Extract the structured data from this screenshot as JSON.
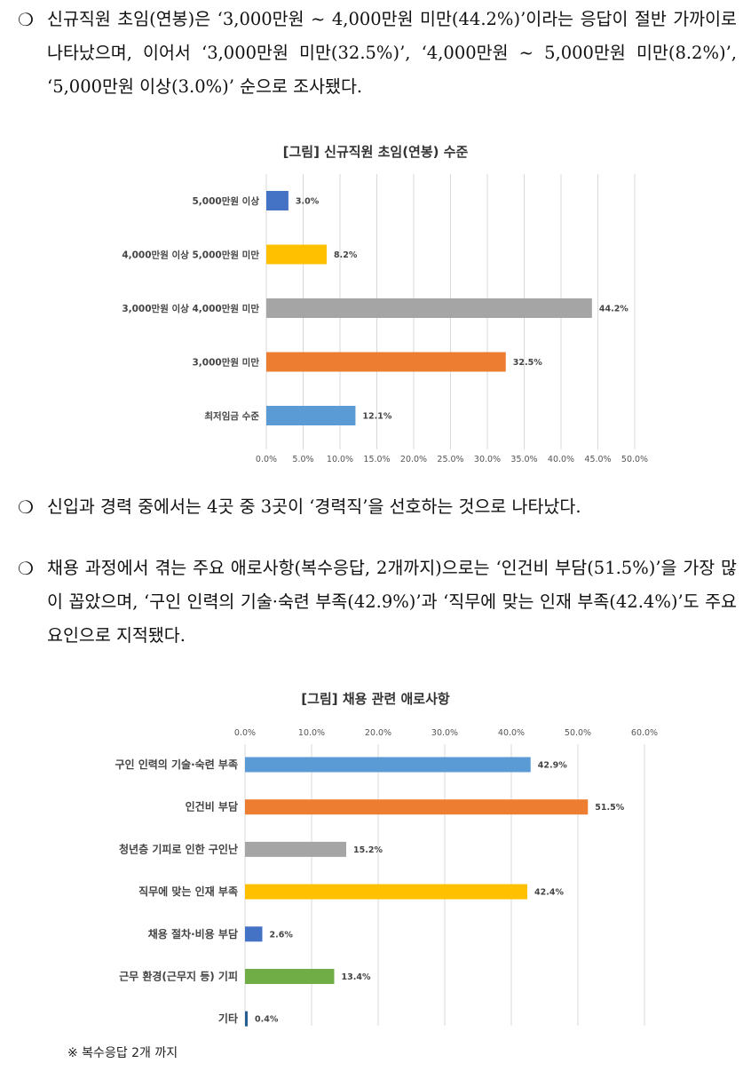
{
  "paragraphs": [
    {
      "bullet": "❍",
      "text": "신규직원 초임(연봉)은 ‘3,000만원 ~ 4,000만원 미만(44.2%)’이라는 응답이 절반 가까이로 나타났으며, 이어서 ‘3,000만원 미만(32.5%)’, ‘4,000만원 ~ 5,000만원 미만(8.2%)’, ‘5,000만원 이상(3.0%)’ 순으로 조사됐다."
    },
    {
      "bullet": "❍",
      "text": "신입과 경력 중에서는 4곳 중 3곳이 ‘경력직’을 선호하는 것으로 나타났다."
    },
    {
      "bullet": "❍",
      "text": "채용 과정에서 겪는 주요 애로사항(복수응답, 2개까지)으로는 ‘인건비 부담(51.5%)’을 가장 많이 꼽았으며, ‘구인 인력의 기술·숙련 부족(42.9%)’과 ‘직무에 맞는 인재 부족(42.4%)’도 주요 요인으로 지적됐다."
    }
  ],
  "footnote": "※ 복수응답 2개 까지",
  "chart_data": [
    {
      "type": "bar",
      "orientation": "horizontal",
      "title": "[그림] 신규직원 초임(연봉) 수준",
      "categories": [
        "5,000만원 이상",
        "4,000만원 이상 5,000만원 미만",
        "3,000만원 이상 4,000만원 미만",
        "3,000만원 미만",
        "최저임금 수준"
      ],
      "values": [
        3.0,
        8.2,
        44.2,
        32.5,
        12.1
      ],
      "value_labels": [
        "3.0%",
        "8.2%",
        "44.2%",
        "32.5%",
        "12.1%"
      ],
      "colors": [
        "#4472c4",
        "#ffc000",
        "#a5a5a5",
        "#ed7d31",
        "#5b9bd5"
      ],
      "xlim": [
        0,
        50
      ],
      "ticks": [
        "0.0%",
        "5.0%",
        "10.0%",
        "15.0%",
        "20.0%",
        "25.0%",
        "30.0%",
        "35.0%",
        "40.0%",
        "45.0%",
        "50.0%"
      ],
      "axis_position": "bottom",
      "grid": true
    },
    {
      "type": "bar",
      "orientation": "horizontal",
      "title": "[그림] 채용 관련 애로사항",
      "categories": [
        "구인 인력의 기술·숙련 부족",
        "인건비 부담",
        "청년층 기피로 인한 구인난",
        "직무에 맞는 인재 부족",
        "채용 절차·비용 부담",
        "근무 환경(근무지 등) 기피",
        "기타"
      ],
      "values": [
        42.9,
        51.5,
        15.2,
        42.4,
        2.6,
        13.4,
        0.4
      ],
      "value_labels": [
        "42.9%",
        "51.5%",
        "15.2%",
        "42.4%",
        "2.6%",
        "13.4%",
        "0.4%"
      ],
      "colors": [
        "#5b9bd5",
        "#ed7d31",
        "#a5a5a5",
        "#ffc000",
        "#4472c4",
        "#70ad47",
        "#255e91"
      ],
      "xlim": [
        0,
        60
      ],
      "ticks": [
        "0.0%",
        "10.0%",
        "20.0%",
        "30.0%",
        "40.0%",
        "50.0%",
        "60.0%"
      ],
      "axis_position": "top",
      "grid": true
    }
  ]
}
